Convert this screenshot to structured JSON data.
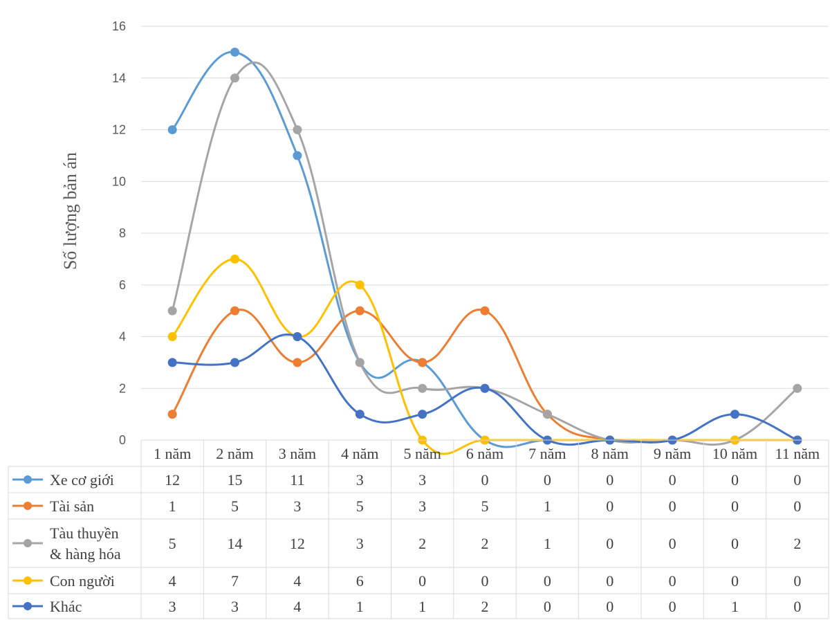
{
  "chart_data": {
    "type": "line",
    "title": "",
    "xlabel": "",
    "ylabel": "Số lượng bản án",
    "ylim": [
      0,
      16
    ],
    "yticks": [
      0,
      2,
      4,
      6,
      8,
      10,
      12,
      14,
      16
    ],
    "grid": true,
    "smooth": true,
    "legend": "data-table-below",
    "categories": [
      "1 năm",
      "2 năm",
      "3 năm",
      "4 năm",
      "5 năm",
      "6 năm",
      "7 năm",
      "8 năm",
      "9 năm",
      "10 năm",
      "11 năm"
    ],
    "series": [
      {
        "name": "Xe cơ giới",
        "name_lines": [
          "Xe cơ giới"
        ],
        "color": "#5b9bd5",
        "values": [
          12,
          15,
          11,
          3,
          3,
          0,
          0,
          0,
          0,
          0,
          0
        ]
      },
      {
        "name": "Tài sản",
        "name_lines": [
          "Tài sản"
        ],
        "color": "#ed7d31",
        "values": [
          1,
          5,
          3,
          5,
          3,
          5,
          1,
          0,
          0,
          0,
          0
        ]
      },
      {
        "name": "Tàu thuyền & hàng hóa",
        "name_lines": [
          "Tàu thuyền",
          "& hàng hóa"
        ],
        "color": "#a5a5a5",
        "values": [
          5,
          14,
          12,
          3,
          2,
          2,
          1,
          0,
          0,
          0,
          2
        ]
      },
      {
        "name": "Con người",
        "name_lines": [
          "Con người"
        ],
        "color": "#ffc000",
        "values": [
          4,
          7,
          4,
          6,
          0,
          0,
          0,
          0,
          0,
          0,
          0
        ]
      },
      {
        "name": "Khác",
        "name_lines": [
          "Khác"
        ],
        "color": "#4472c4",
        "values": [
          3,
          3,
          4,
          1,
          1,
          2,
          0,
          0,
          0,
          1,
          0
        ]
      }
    ]
  }
}
